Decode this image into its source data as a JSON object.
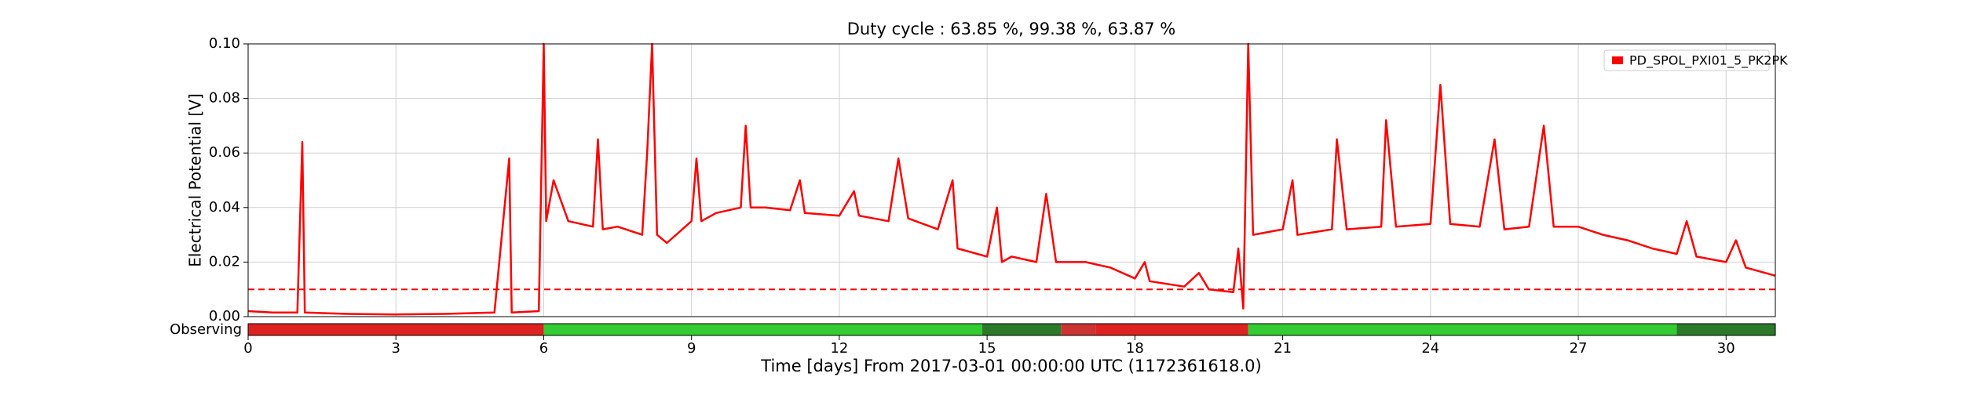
{
  "chart_data": {
    "type": "line",
    "title": "Duty cycle : 63.85 %, 99.38 %, 63.87 %",
    "xlabel": "Time [days] From 2017-03-01 00:00:00 UTC (1172361618.0)",
    "ylabel": "Electrical Potential [V]",
    "xlim": [
      0,
      31
    ],
    "ylim": [
      0,
      0.1
    ],
    "xticks": [
      0,
      3,
      6,
      9,
      12,
      15,
      18,
      21,
      24,
      27,
      30
    ],
    "yticks": [
      {
        "value": 0,
        "label": "0.00"
      },
      {
        "value": 0.02,
        "label": "0.02"
      },
      {
        "value": 0.04,
        "label": "0.04"
      },
      {
        "value": 0.06,
        "label": "0.06"
      },
      {
        "value": 0.08,
        "label": "0.08"
      },
      {
        "value": 0.1,
        "label": "0.10"
      }
    ],
    "grid": true,
    "legend_position": "upper right",
    "threshold": 0.01,
    "threshold_color": "#ff0000",
    "x": [
      0,
      0.5,
      1.0,
      1.1,
      1.15,
      2,
      3,
      4,
      5,
      5.3,
      5.35,
      5.9,
      6.0,
      6.05,
      6.2,
      6.5,
      7.0,
      7.1,
      7.2,
      7.5,
      8,
      8.1,
      8.2,
      8.3,
      8.5,
      9,
      9.1,
      9.2,
      9.5,
      10,
      10.1,
      10.2,
      10.5,
      11,
      11.2,
      11.3,
      12,
      12.3,
      12.4,
      13,
      13.2,
      13.4,
      14,
      14.3,
      14.4,
      15,
      15.2,
      15.3,
      15.5,
      16,
      16.2,
      16.4,
      17,
      17.5,
      18,
      18.2,
      18.3,
      19,
      19.3,
      19.5,
      20,
      20.1,
      20.2,
      20.3,
      20.4,
      21,
      21.2,
      21.3,
      22,
      22.1,
      22.3,
      23,
      23.1,
      23.3,
      24,
      24.2,
      24.4,
      25,
      25.3,
      25.5,
      26,
      26.3,
      26.5,
      27,
      27.5,
      28,
      28.5,
      29,
      29.2,
      29.4,
      30,
      30.2,
      30.4,
      31
    ],
    "series": [
      {
        "name": "PD_SPOL_PXI01_5_PK2PK",
        "color": "#ff0000",
        "values": [
          0.002,
          0.0015,
          0.0015,
          0.064,
          0.0015,
          0.001,
          0.0008,
          0.001,
          0.0015,
          0.058,
          0.0015,
          0.002,
          0.1,
          0.035,
          0.05,
          0.035,
          0.033,
          0.065,
          0.032,
          0.033,
          0.03,
          0.06,
          0.1,
          0.03,
          0.027,
          0.035,
          0.058,
          0.035,
          0.038,
          0.04,
          0.07,
          0.04,
          0.04,
          0.039,
          0.05,
          0.038,
          0.037,
          0.046,
          0.037,
          0.035,
          0.058,
          0.036,
          0.032,
          0.05,
          0.025,
          0.022,
          0.04,
          0.02,
          0.022,
          0.02,
          0.045,
          0.02,
          0.02,
          0.018,
          0.014,
          0.02,
          0.013,
          0.011,
          0.016,
          0.01,
          0.009,
          0.025,
          0.003,
          0.1,
          0.03,
          0.032,
          0.05,
          0.03,
          0.032,
          0.065,
          0.032,
          0.033,
          0.072,
          0.033,
          0.034,
          0.085,
          0.034,
          0.033,
          0.065,
          0.032,
          0.033,
          0.07,
          0.033,
          0.033,
          0.03,
          0.028,
          0.025,
          0.023,
          0.035,
          0.022,
          0.02,
          0.028,
          0.018,
          0.015
        ]
      }
    ],
    "state_label": "Observing",
    "state_segments": [
      {
        "start": 0,
        "end": 6,
        "color": "#dd2222"
      },
      {
        "start": 6,
        "end": 14.9,
        "color": "#33cc33"
      },
      {
        "start": 14.9,
        "end": 16.5,
        "color": "#2a7a2a"
      },
      {
        "start": 16.5,
        "end": 17.2,
        "color": "#cc3333"
      },
      {
        "start": 17.2,
        "end": 20.3,
        "color": "#dd2222"
      },
      {
        "start": 20.3,
        "end": 29,
        "color": "#33cc33"
      },
      {
        "start": 29,
        "end": 31,
        "color": "#2a7a2a"
      }
    ]
  }
}
